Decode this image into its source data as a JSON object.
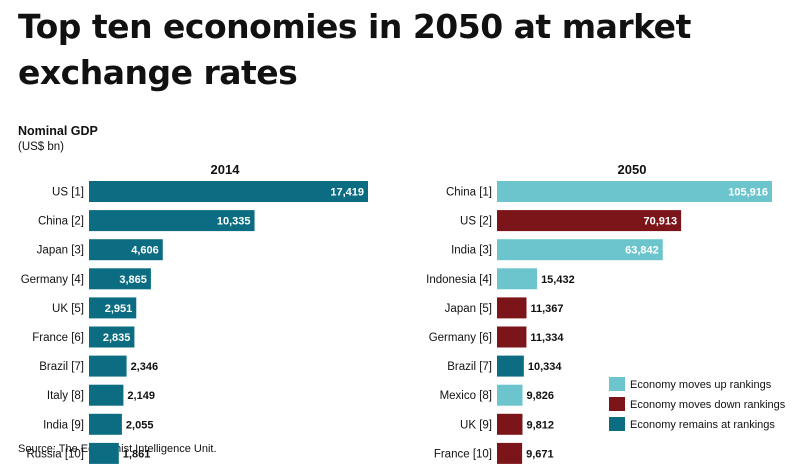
{
  "title": "Top ten economies in 2050 at market exchange rates",
  "subtitle": "Nominal GDP",
  "unit": "(US$ bn)",
  "source": "Source: The Economist Intelligence Unit.",
  "colors": {
    "up": "#6cc5cd",
    "down": "#7b1519",
    "same": "#0c6d82"
  },
  "legend": [
    {
      "key": "up",
      "label": "Economy moves up rankings"
    },
    {
      "key": "down",
      "label": "Economy moves down rankings"
    },
    {
      "key": "same",
      "label": "Economy remains at rankings"
    }
  ],
  "chart_data": [
    {
      "type": "bar",
      "orientation": "horizontal",
      "title": "2014",
      "categories": [
        "US [1]",
        "China [2]",
        "Japan [3]",
        "Germany [4]",
        "UK [5]",
        "France [6]",
        "Brazil [7]",
        "Italy [8]",
        "India [9]",
        "Russia [10]"
      ],
      "values": [
        17419,
        10335,
        4606,
        3865,
        2951,
        2835,
        2346,
        2149,
        2055,
        1861
      ],
      "labels": [
        "17,419",
        "10,335",
        "4,606",
        "3,865",
        "2,951",
        "2,835",
        "2,346",
        "2,149",
        "2,055",
        "1,861"
      ],
      "status": [
        "same",
        "same",
        "same",
        "same",
        "same",
        "same",
        "same",
        "same",
        "same",
        "same"
      ],
      "xlim": [
        0,
        17419
      ]
    },
    {
      "type": "bar",
      "orientation": "horizontal",
      "title": "2050",
      "categories": [
        "China [1]",
        "US [2]",
        "India [3]",
        "Indonesia [4]",
        "Japan [5]",
        "Germany [6]",
        "Brazil [7]",
        "Mexico [8]",
        "UK [9]",
        "France [10]"
      ],
      "values": [
        105916,
        70913,
        63842,
        15432,
        11367,
        11334,
        10334,
        9826,
        9812,
        9671
      ],
      "labels": [
        "105,916",
        "70,913",
        "63,842",
        "15,432",
        "11,367",
        "11,334",
        "10,334",
        "9,826",
        "9,812",
        "9,671"
      ],
      "status": [
        "up",
        "down",
        "up",
        "up",
        "down",
        "down",
        "same",
        "up",
        "down",
        "down"
      ],
      "xlim": [
        0,
        105916
      ]
    }
  ]
}
